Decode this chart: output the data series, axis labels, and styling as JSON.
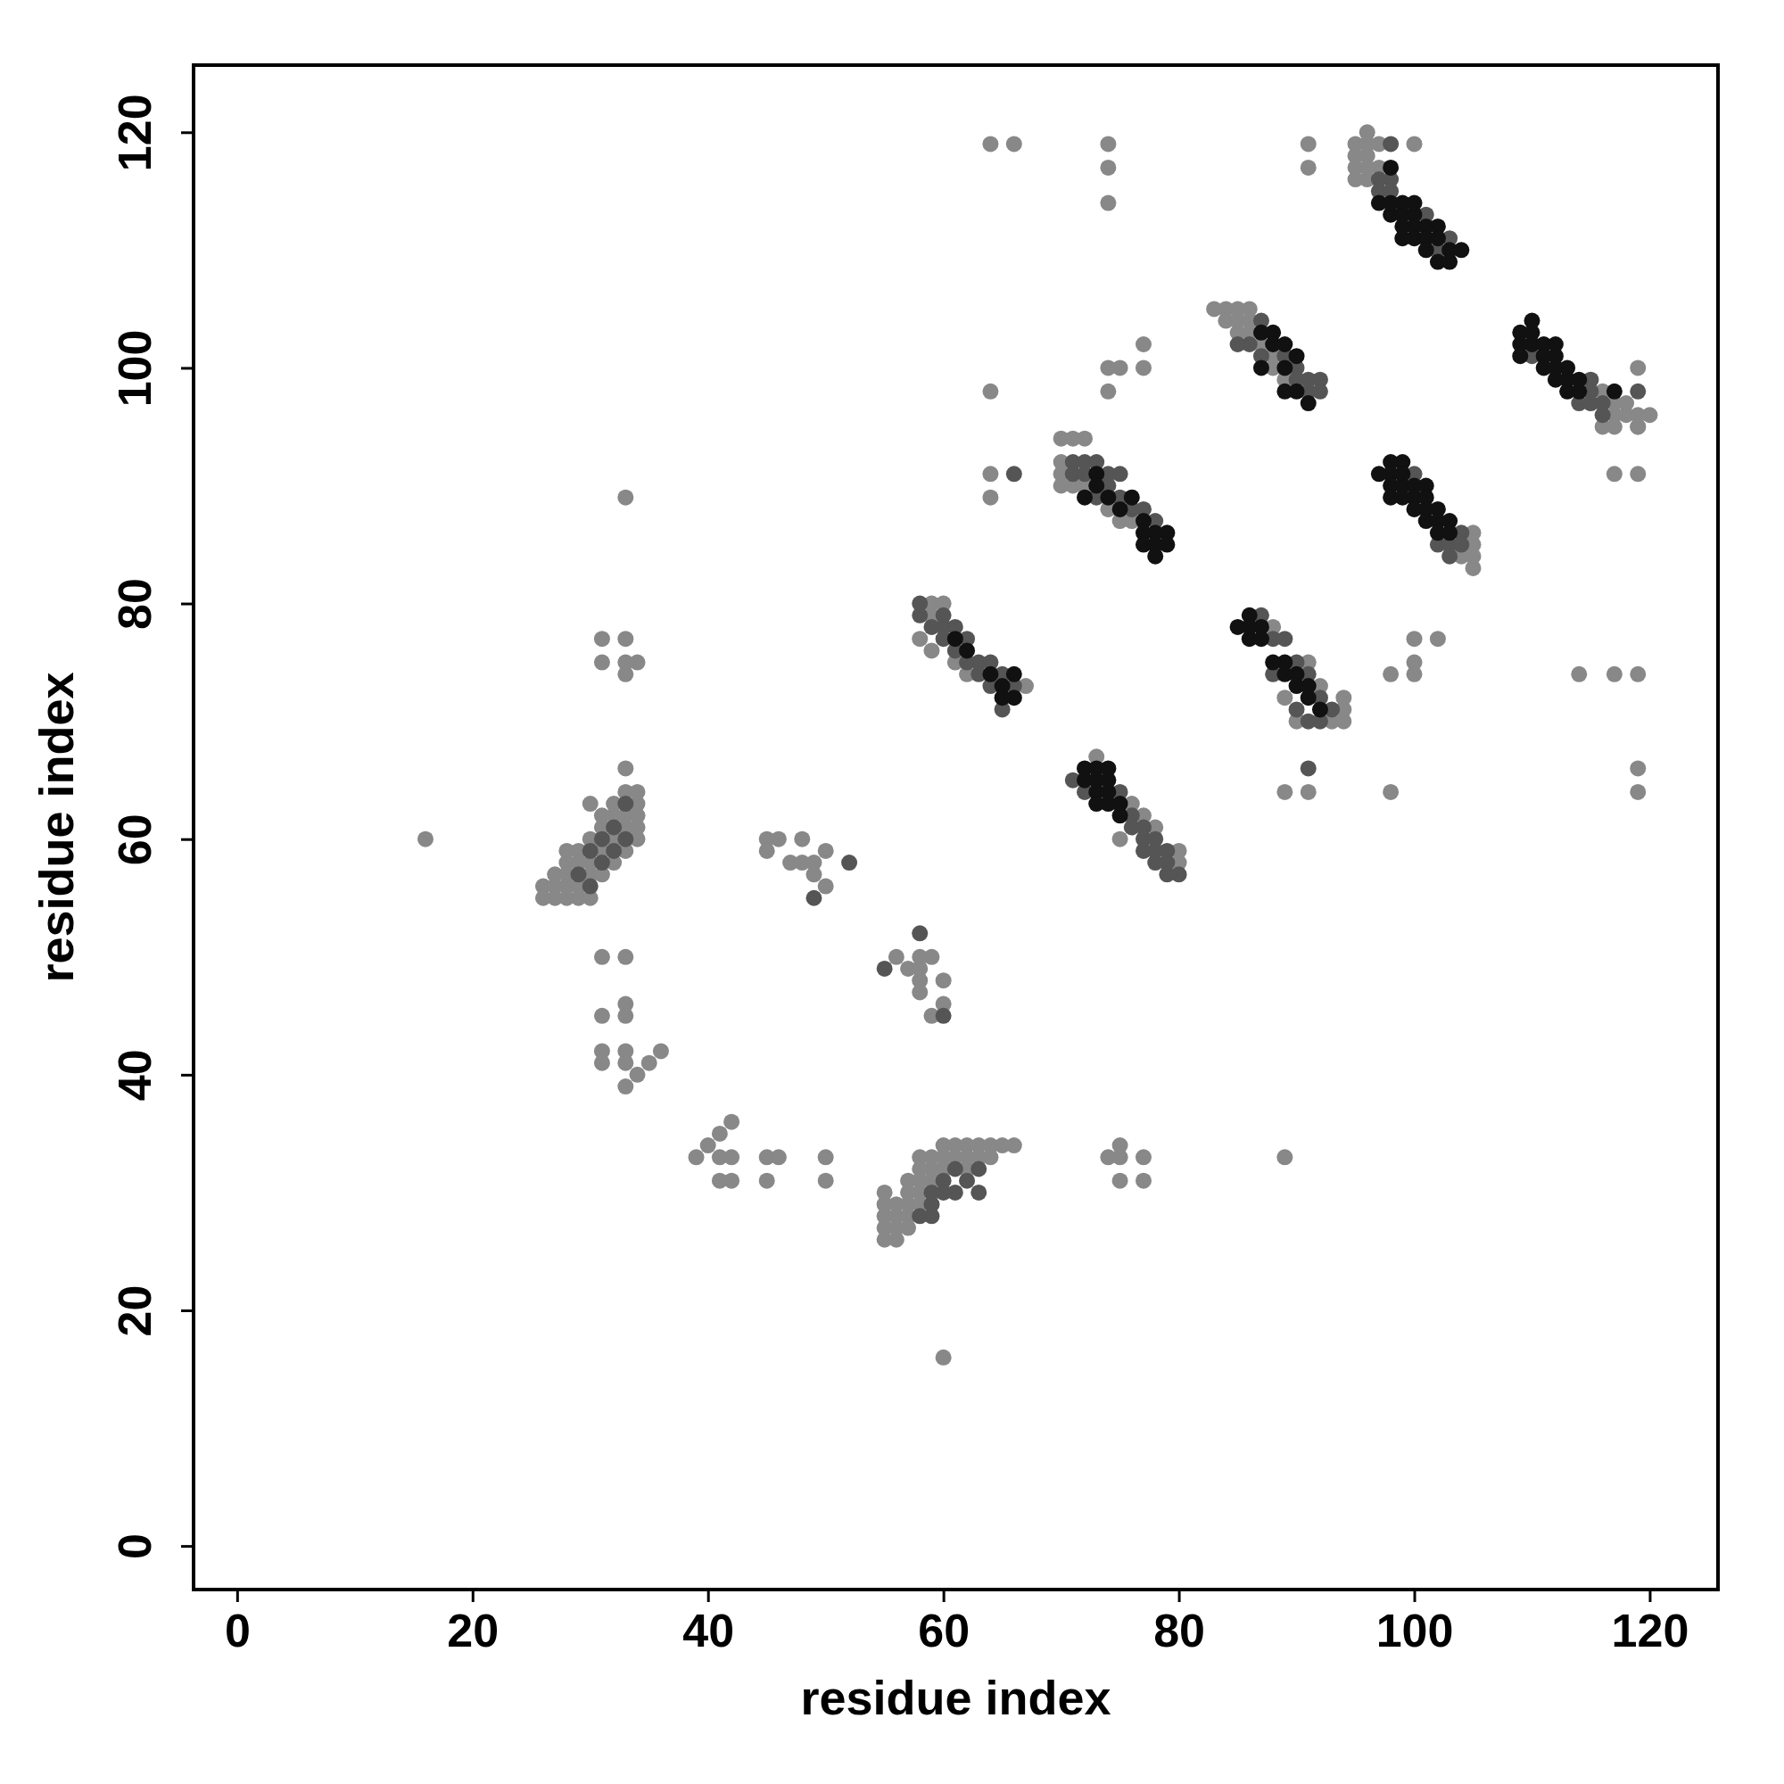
{
  "chart_data": {
    "type": "scatter",
    "xlabel": "residue index",
    "ylabel": "residue index",
    "xlim": [
      -3.7,
      125.8
    ],
    "ylim": [
      -3.7,
      125.7
    ],
    "xticks": [
      0,
      20,
      40,
      60,
      80,
      100,
      120
    ],
    "yticks": [
      0,
      20,
      40,
      60,
      80,
      100,
      120
    ],
    "marker": "circle",
    "grid": false,
    "series": [
      {
        "color": "#888888",
        "x": [
          16,
          60,
          33,
          31,
          33,
          31,
          33,
          34,
          33,
          33,
          31,
          33,
          31,
          33,
          33,
          31,
          31,
          33,
          33,
          34,
          33,
          35,
          36,
          39,
          40,
          41,
          42,
          41,
          42,
          41,
          42,
          45,
          46,
          45,
          50,
          50,
          45,
          46,
          45,
          48,
          47,
          48,
          49,
          50,
          49,
          50,
          56,
          58,
          59,
          58,
          57,
          58,
          58,
          60,
          60,
          59,
          64,
          66,
          74,
          74,
          74,
          91,
          91,
          100,
          75,
          74,
          74,
          77,
          77,
          64,
          64,
          64,
          75,
          75,
          74,
          77,
          75,
          77,
          66,
          89,
          98,
          100,
          100,
          100,
          102,
          98,
          89,
          91,
          94,
          94,
          94,
          114,
          117,
          119,
          119,
          119,
          119,
          119,
          119,
          117,
          120,
          95,
          95,
          96,
          96,
          96,
          97,
          95,
          95,
          96,
          97,
          96,
          83,
          84,
          85,
          86,
          84,
          85,
          86,
          85,
          86,
          87,
          88,
          88,
          89,
          116,
          117,
          117,
          118,
          116,
          117,
          118,
          119,
          119,
          70,
          71,
          72,
          70,
          70,
          70,
          71,
          72,
          74,
          76,
          75,
          104,
          105,
          105,
          105,
          105,
          59,
          60,
          59,
          58,
          61,
          62,
          67,
          59,
          88,
          91,
          92,
          90,
          93,
          89,
          73,
          75,
          77,
          76,
          80,
          80,
          78,
          26,
          26,
          27,
          27,
          27,
          28,
          28,
          28,
          28,
          29,
          29,
          29,
          29,
          30,
          30,
          30,
          31,
          31,
          31,
          32,
          32,
          32,
          32,
          33,
          33,
          33,
          33,
          34,
          34,
          34,
          34,
          34,
          30,
          31,
          28,
          30,
          55,
          55,
          55,
          55,
          55,
          56,
          56,
          56,
          56,
          57,
          57,
          57,
          57,
          58,
          58,
          58,
          58,
          59,
          59,
          59,
          60,
          60,
          60,
          61,
          61,
          62,
          62,
          63,
          63,
          64,
          65,
          62,
          64,
          57,
          58
        ],
        "values": [
          60,
          16,
          89,
          77,
          77,
          75,
          75,
          75,
          74,
          66,
          50,
          50,
          45,
          45,
          46,
          42,
          41,
          42,
          41,
          40,
          39,
          41,
          42,
          33,
          34,
          35,
          36,
          33,
          33,
          31,
          31,
          33,
          33,
          31,
          33,
          31,
          60,
          60,
          59,
          60,
          58,
          58,
          58,
          59,
          57,
          56,
          50,
          50,
          50,
          49,
          49,
          48,
          47,
          48,
          46,
          45,
          119,
          119,
          119,
          117,
          114,
          119,
          117,
          119,
          100,
          100,
          98,
          102,
          100,
          98,
          91,
          89,
          34,
          33,
          33,
          33,
          31,
          31,
          34,
          33,
          74,
          77,
          75,
          74,
          77,
          64,
          64,
          64,
          72,
          71,
          70,
          74,
          74,
          74,
          66,
          64,
          100,
          95,
          91,
          91,
          96,
          119,
          118,
          120,
          119,
          118,
          119,
          117,
          116,
          116,
          117,
          117,
          105,
          105,
          105,
          105,
          104,
          104,
          104,
          103,
          103,
          102,
          100,
          101,
          99,
          98,
          97,
          96,
          96,
          95,
          95,
          97,
          96,
          95,
          94,
          94,
          94,
          92,
          91,
          90,
          90,
          90,
          88,
          87,
          87,
          84,
          86,
          85,
          84,
          83,
          80,
          80,
          79,
          77,
          75,
          74,
          73,
          76,
          78,
          75,
          73,
          70,
          70,
          72,
          67,
          60,
          62,
          63,
          59,
          58,
          61,
          56,
          55,
          55,
          56,
          57,
          55,
          56,
          57,
          58,
          55,
          56,
          58,
          59,
          55,
          57,
          58,
          57,
          59,
          61,
          58,
          60,
          62,
          63,
          59,
          61,
          62,
          64,
          60,
          61,
          62,
          63,
          64,
          63,
          62,
          59,
          60,
          26,
          27,
          28,
          29,
          30,
          26,
          27,
          28,
          29,
          28,
          29,
          30,
          31,
          29,
          30,
          31,
          33,
          31,
          32,
          33,
          32,
          33,
          34,
          33,
          34,
          32,
          34,
          33,
          34,
          34,
          34,
          33,
          33,
          27,
          32
        ]
      },
      {
        "color": "#555555",
        "x": [
          49,
          52,
          55,
          60,
          58,
          66,
          91,
          119,
          98,
          97,
          98,
          97,
          98,
          102,
          103,
          101,
          87,
          86,
          87,
          89,
          90,
          90,
          91,
          91,
          92,
          92,
          85,
          115,
          114,
          115,
          116,
          116,
          110,
          115,
          71,
          71,
          72,
          72,
          73,
          74,
          75,
          74,
          75,
          73,
          77,
          78,
          76,
          100,
          102,
          103,
          104,
          104,
          103,
          58,
          58,
          59,
          60,
          60,
          61,
          62,
          62,
          63,
          64,
          63,
          64,
          65,
          66,
          65,
          60,
          61,
          87,
          88,
          89,
          88,
          90,
          91,
          92,
          91,
          90,
          92,
          93,
          71,
          72,
          75,
          76,
          76,
          77,
          77,
          77,
          78,
          78,
          79,
          79,
          79,
          80,
          78,
          29,
          30,
          31,
          31,
          32,
          32,
          33,
          33,
          30,
          59,
          59,
          59,
          60,
          61,
          61,
          62,
          63,
          63,
          60,
          58
        ],
        "values": [
          55,
          58,
          49,
          45,
          52,
          91,
          66,
          98,
          119,
          116,
          116,
          115,
          115,
          110,
          111,
          113,
          104,
          102,
          101,
          101,
          100,
          99,
          99,
          98,
          99,
          98,
          102,
          99,
          97,
          97,
          97,
          96,
          101,
          98,
          92,
          91,
          92,
          91,
          92,
          91,
          91,
          90,
          89,
          89,
          88,
          87,
          88,
          91,
          85,
          85,
          86,
          85,
          84,
          80,
          79,
          78,
          78,
          77,
          78,
          77,
          75,
          75,
          75,
          74,
          73,
          74,
          73,
          71,
          79,
          76,
          79,
          77,
          77,
          74,
          75,
          74,
          72,
          70,
          71,
          70,
          71,
          65,
          64,
          64,
          62,
          61,
          61,
          60,
          59,
          59,
          58,
          59,
          58,
          57,
          57,
          60,
          57,
          59,
          58,
          60,
          59,
          61,
          60,
          63,
          56,
          28,
          29,
          30,
          31,
          30,
          32,
          31,
          30,
          32,
          30,
          28
        ]
      },
      {
        "color": "#111111",
        "x": [
          98,
          97,
          98,
          98,
          99,
          99,
          99,
          100,
          100,
          100,
          101,
          101,
          102,
          102,
          101,
          102,
          103,
          103,
          104,
          99,
          100,
          87,
          88,
          88,
          89,
          89,
          90,
          90,
          91,
          87,
          89,
          109,
          109,
          110,
          110,
          110,
          111,
          111,
          112,
          112,
          112,
          111,
          113,
          113,
          114,
          114,
          113,
          117,
          112,
          109,
          73,
          73,
          74,
          75,
          76,
          77,
          77,
          77,
          78,
          78,
          78,
          79,
          79,
          72,
          97,
          98,
          98,
          98,
          99,
          99,
          99,
          98,
          99,
          100,
          100,
          100,
          101,
          101,
          101,
          101,
          102,
          102,
          103,
          103,
          102,
          61,
          64,
          65,
          66,
          66,
          65,
          62,
          85,
          86,
          86,
          87,
          86,
          87,
          89,
          89,
          90,
          90,
          91,
          91,
          88,
          92,
          72,
          73,
          72,
          73,
          74,
          74,
          73,
          74,
          74,
          75,
          75,
          73
        ],
        "values": [
          117,
          114,
          114,
          113,
          114,
          113,
          112,
          113,
          112,
          111,
          112,
          111,
          112,
          111,
          110,
          109,
          109,
          110,
          110,
          111,
          114,
          103,
          103,
          102,
          102,
          100,
          101,
          98,
          97,
          100,
          98,
          103,
          102,
          104,
          103,
          102,
          102,
          101,
          102,
          101,
          100,
          100,
          100,
          99,
          99,
          98,
          98,
          98,
          99,
          101,
          91,
          90,
          89,
          88,
          89,
          87,
          86,
          85,
          86,
          85,
          84,
          86,
          85,
          89,
          91,
          92,
          91,
          90,
          92,
          91,
          90,
          89,
          89,
          90,
          89,
          88,
          90,
          89,
          88,
          87,
          88,
          87,
          87,
          86,
          86,
          77,
          74,
          73,
          74,
          72,
          72,
          76,
          78,
          79,
          78,
          78,
          77,
          77,
          75,
          74,
          74,
          73,
          72,
          73,
          75,
          71,
          66,
          66,
          65,
          65,
          65,
          66,
          64,
          64,
          63,
          63,
          62,
          63
        ]
      }
    ]
  }
}
